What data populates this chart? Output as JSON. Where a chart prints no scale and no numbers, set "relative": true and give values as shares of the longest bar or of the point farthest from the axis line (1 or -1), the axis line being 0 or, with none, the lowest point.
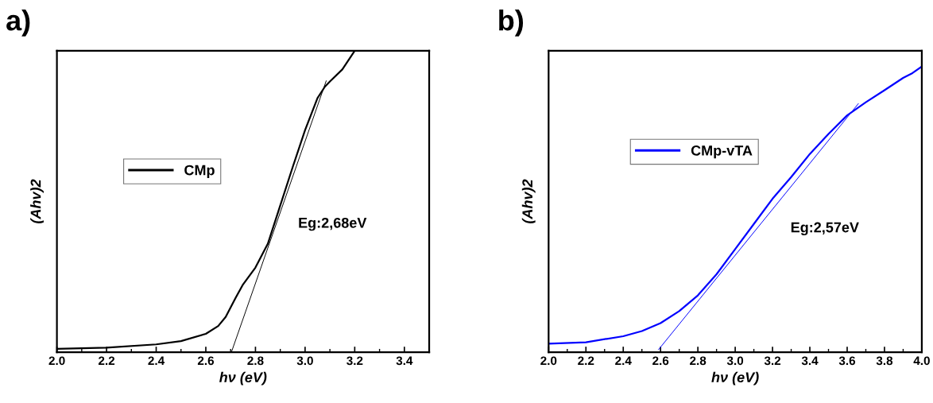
{
  "chart_data": [
    {
      "type": "line",
      "title": "a)",
      "xlabel": "hν (eV)",
      "ylabel": "(Ahv)2",
      "relative": true,
      "legend": "center",
      "annotations": [
        "Eg:2,68eV"
      ],
      "xlim": [
        2.0,
        3.5
      ],
      "xticks": [
        {
          "value": 2,
          "label": "2.0"
        },
        {
          "value": 2.1,
          "label": null
        },
        2.2,
        {
          "value": 2.3,
          "label": null
        },
        2.4,
        {
          "value": 2.5,
          "label": null
        },
        2.6,
        {
          "value": 2.7,
          "label": null
        },
        2.8,
        {
          "value": 2.9,
          "label": null
        },
        {
          "value": 3,
          "label": "3.0"
        },
        {
          "value": 3.1,
          "label": null
        },
        3.2,
        {
          "value": 3.3,
          "label": null
        },
        3.4,
        {
          "value": 3.5,
          "label": null
        }
      ],
      "series": [
        {
          "name": "CMp",
          "color": "#000000",
          "x": [
            2.0,
            2.2,
            2.4,
            2.5,
            2.6,
            2.65,
            2.68,
            2.72,
            2.75,
            2.8,
            2.85,
            2.9,
            2.95,
            3.0,
            3.05,
            3.08,
            3.1,
            3.15,
            3.2
          ],
          "values": [
            0.011,
            0.015,
            0.026,
            0.037,
            0.061,
            0.087,
            0.117,
            0.18,
            0.225,
            0.281,
            0.36,
            0.487,
            0.614,
            0.737,
            0.843,
            0.881,
            0.898,
            0.938,
            1.0
          ]
        },
        {
          "color": "#000000",
          "x": [
            2.703,
            3.085
          ],
          "values": [
            0.0,
            0.9
          ]
        }
      ]
    },
    {
      "type": "line",
      "title": "b)",
      "xlabel": "hν (eV)",
      "ylabel": "(Ahv)2",
      "relative": true,
      "legend": "top left",
      "annotations": [
        "Eg:2,57eV"
      ],
      "xlim": [
        2.0,
        4.0
      ],
      "xticks": [
        {
          "value": 2,
          "label": "2.0"
        },
        {
          "value": 2.1,
          "label": null
        },
        2.2,
        {
          "value": 2.3,
          "label": null
        },
        2.4,
        {
          "value": 2.5,
          "label": null
        },
        2.6,
        {
          "value": 2.7,
          "label": null
        },
        2.8,
        {
          "value": 2.9,
          "label": null
        },
        {
          "value": 3,
          "label": "3.0"
        },
        {
          "value": 3.1,
          "label": null
        },
        3.2,
        {
          "value": 3.3,
          "label": null
        },
        3.4,
        {
          "value": 3.5,
          "label": null
        },
        3.6,
        {
          "value": 3.7,
          "label": null
        },
        3.8,
        {
          "value": 3.9,
          "label": null
        },
        {
          "value": 4,
          "label": "4.0"
        }
      ],
      "series": [
        {
          "name": "CMp-vTA",
          "color": "#0000ff",
          "x": [
            2.0,
            2.2,
            2.4,
            2.5,
            2.6,
            2.7,
            2.8,
            2.9,
            3.0,
            3.1,
            3.2,
            3.3,
            3.4,
            3.5,
            3.6,
            3.65,
            3.7,
            3.8,
            3.9,
            3.95,
            4.0
          ],
          "values": [
            0.03,
            0.035,
            0.056,
            0.074,
            0.102,
            0.144,
            0.199,
            0.273,
            0.361,
            0.449,
            0.537,
            0.613,
            0.694,
            0.764,
            0.829,
            0.852,
            0.875,
            0.917,
            0.96,
            0.977,
            1.0
          ]
        },
        {
          "color": "#0000ff",
          "x": [
            2.589,
            3.66
          ],
          "values": [
            0.009,
            0.87
          ]
        }
      ]
    }
  ]
}
